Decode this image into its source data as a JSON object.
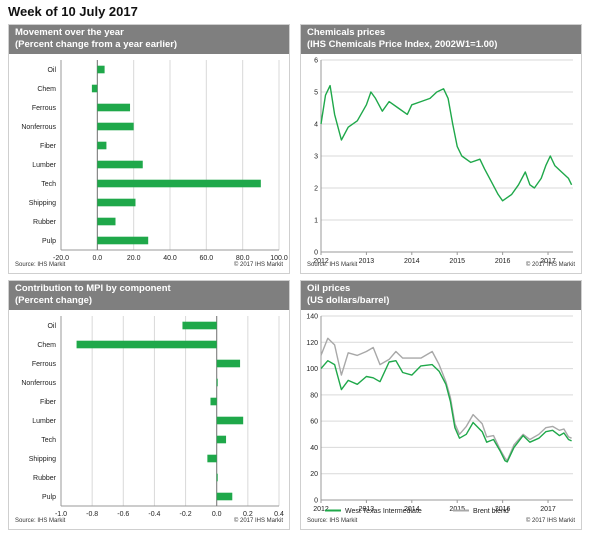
{
  "page_title": "Week of 10 July 2017",
  "colors": {
    "green": "#1fa84a",
    "gray": "#a8a8a8",
    "header": "#7f7f7f",
    "grid": "#d9d9d9"
  },
  "chart_data": [
    {
      "id": "movement",
      "type": "bar",
      "orientation": "horizontal",
      "title": "Movement over the year",
      "subtitle": "(Percent change from a year earlier)",
      "categories": [
        "Oil",
        "Chem",
        "Ferrous",
        "Nonferrous",
        "Fiber",
        "Lumber",
        "Tech",
        "Shipping",
        "Rubber",
        "Pulp"
      ],
      "values": [
        4,
        -3,
        18,
        20,
        5,
        25,
        90,
        21,
        10,
        28
      ],
      "xlim": [
        -20,
        100
      ],
      "xticks": [
        -20,
        0,
        20,
        40,
        60,
        80,
        100
      ],
      "xtick_labels": [
        "-20.0",
        "0.0",
        "20.0",
        "40.0",
        "60.0",
        "80.0",
        "100.0"
      ],
      "grid": true,
      "source": "Source: IHS Markit",
      "copyright": "© 2017 IHS Markit"
    },
    {
      "id": "chemicals",
      "type": "line",
      "title": "Chemicals prices",
      "subtitle": "(IHS Chemicals Price Index, 2002W1=1.00)",
      "ylim": [
        0,
        6
      ],
      "yticks": [
        0,
        1,
        2,
        3,
        4,
        5,
        6
      ],
      "xlim": [
        2012,
        2017.55
      ],
      "xticks": [
        2012,
        2013,
        2014,
        2015,
        2016,
        2017
      ],
      "grid": true,
      "series": [
        {
          "color": "#1fa84a",
          "points": [
            [
              2012.0,
              4.0
            ],
            [
              2012.1,
              4.9
            ],
            [
              2012.2,
              5.2
            ],
            [
              2012.3,
              4.3
            ],
            [
              2012.45,
              3.5
            ],
            [
              2012.6,
              3.9
            ],
            [
              2012.8,
              4.1
            ],
            [
              2013.0,
              4.6
            ],
            [
              2013.1,
              5.0
            ],
            [
              2013.2,
              4.8
            ],
            [
              2013.35,
              4.4
            ],
            [
              2013.5,
              4.7
            ],
            [
              2013.7,
              4.5
            ],
            [
              2013.9,
              4.3
            ],
            [
              2014.0,
              4.6
            ],
            [
              2014.2,
              4.7
            ],
            [
              2014.4,
              4.8
            ],
            [
              2014.55,
              5.0
            ],
            [
              2014.7,
              5.1
            ],
            [
              2014.8,
              4.8
            ],
            [
              2014.9,
              4.0
            ],
            [
              2015.0,
              3.3
            ],
            [
              2015.1,
              3.0
            ],
            [
              2015.3,
              2.8
            ],
            [
              2015.5,
              2.9
            ],
            [
              2015.6,
              2.6
            ],
            [
              2015.75,
              2.2
            ],
            [
              2015.9,
              1.8
            ],
            [
              2016.0,
              1.6
            ],
            [
              2016.1,
              1.7
            ],
            [
              2016.2,
              1.8
            ],
            [
              2016.35,
              2.1
            ],
            [
              2016.5,
              2.5
            ],
            [
              2016.6,
              2.1
            ],
            [
              2016.7,
              2.0
            ],
            [
              2016.85,
              2.3
            ],
            [
              2016.95,
              2.7
            ],
            [
              2017.05,
              3.0
            ],
            [
              2017.15,
              2.7
            ],
            [
              2017.3,
              2.5
            ],
            [
              2017.45,
              2.3
            ],
            [
              2017.52,
              2.1
            ]
          ]
        }
      ],
      "source": "Source: IHS Markit",
      "copyright": "© 2017 IHS Markit"
    },
    {
      "id": "contribution",
      "type": "bar",
      "orientation": "horizontal",
      "title": "Contribution to MPI by component",
      "subtitle": "(Percent change)",
      "categories": [
        "Oil",
        "Chem",
        "Ferrous",
        "Nonferrous",
        "Fiber",
        "Lumber",
        "Tech",
        "Shipping",
        "Rubber",
        "Pulp"
      ],
      "values": [
        -0.22,
        -0.9,
        0.15,
        0.005,
        -0.04,
        0.17,
        0.06,
        -0.06,
        0.005,
        0.1
      ],
      "xlim": [
        -1.0,
        0.4
      ],
      "xticks": [
        -1.0,
        -0.8,
        -0.6,
        -0.4,
        -0.2,
        0.0,
        0.2,
        0.4
      ],
      "xtick_labels": [
        "-1.0",
        "-0.8",
        "-0.6",
        "-0.4",
        "-0.2",
        "0.0",
        "0.2",
        "0.4"
      ],
      "grid": true,
      "source": "Source: IHS Markit",
      "copyright": "© 2017 IHS Markit"
    },
    {
      "id": "oil",
      "type": "line",
      "title": "Oil prices",
      "subtitle": "(US dollars/barrel)",
      "ylim": [
        0,
        140
      ],
      "yticks": [
        0,
        20,
        40,
        60,
        80,
        100,
        120,
        140
      ],
      "xlim": [
        2012,
        2017.55
      ],
      "xticks": [
        2012,
        2013,
        2014,
        2015,
        2016,
        2017
      ],
      "grid": true,
      "legend_position": "bottom",
      "series": [
        {
          "name": "West Texas Intermediate",
          "color": "#1fa84a",
          "points": [
            [
              2012.0,
              100
            ],
            [
              2012.15,
              106
            ],
            [
              2012.3,
              103
            ],
            [
              2012.45,
              84
            ],
            [
              2012.6,
              91
            ],
            [
              2012.8,
              88
            ],
            [
              2013.0,
              94
            ],
            [
              2013.15,
              93
            ],
            [
              2013.3,
              90
            ],
            [
              2013.5,
              105
            ],
            [
              2013.65,
              106
            ],
            [
              2013.8,
              97
            ],
            [
              2014.0,
              95
            ],
            [
              2014.2,
              102
            ],
            [
              2014.45,
              103
            ],
            [
              2014.6,
              98
            ],
            [
              2014.75,
              88
            ],
            [
              2014.85,
              75
            ],
            [
              2014.95,
              55
            ],
            [
              2015.05,
              47
            ],
            [
              2015.2,
              50
            ],
            [
              2015.35,
              59
            ],
            [
              2015.55,
              52
            ],
            [
              2015.65,
              44
            ],
            [
              2015.8,
              46
            ],
            [
              2015.95,
              37
            ],
            [
              2016.05,
              30
            ],
            [
              2016.1,
              29
            ],
            [
              2016.25,
              40
            ],
            [
              2016.45,
              49
            ],
            [
              2016.6,
              44
            ],
            [
              2016.8,
              47
            ],
            [
              2016.95,
              52
            ],
            [
              2017.1,
              53
            ],
            [
              2017.25,
              49
            ],
            [
              2017.35,
              51
            ],
            [
              2017.45,
              46
            ],
            [
              2017.52,
              45
            ]
          ]
        },
        {
          "name": "Brent blend",
          "color": "#a8a8a8",
          "points": [
            [
              2012.0,
              110
            ],
            [
              2012.15,
              123
            ],
            [
              2012.3,
              118
            ],
            [
              2012.45,
              95
            ],
            [
              2012.6,
              112
            ],
            [
              2012.8,
              110
            ],
            [
              2013.0,
              113
            ],
            [
              2013.15,
              116
            ],
            [
              2013.3,
              103
            ],
            [
              2013.5,
              107
            ],
            [
              2013.65,
              113
            ],
            [
              2013.8,
              108
            ],
            [
              2014.0,
              108
            ],
            [
              2014.2,
              108
            ],
            [
              2014.45,
              113
            ],
            [
              2014.6,
              103
            ],
            [
              2014.75,
              90
            ],
            [
              2014.85,
              78
            ],
            [
              2014.95,
              58
            ],
            [
              2015.05,
              50
            ],
            [
              2015.2,
              56
            ],
            [
              2015.35,
              65
            ],
            [
              2015.55,
              58
            ],
            [
              2015.65,
              48
            ],
            [
              2015.8,
              49
            ],
            [
              2015.95,
              38
            ],
            [
              2016.05,
              32
            ],
            [
              2016.1,
              30
            ],
            [
              2016.25,
              42
            ],
            [
              2016.45,
              50
            ],
            [
              2016.6,
              46
            ],
            [
              2016.8,
              50
            ],
            [
              2016.95,
              55
            ],
            [
              2017.1,
              56
            ],
            [
              2017.25,
              53
            ],
            [
              2017.35,
              54
            ],
            [
              2017.45,
              48
            ],
            [
              2017.52,
              47
            ]
          ]
        }
      ],
      "source": "Source: IHS Markit",
      "copyright": "© 2017 IHS Markit"
    }
  ]
}
